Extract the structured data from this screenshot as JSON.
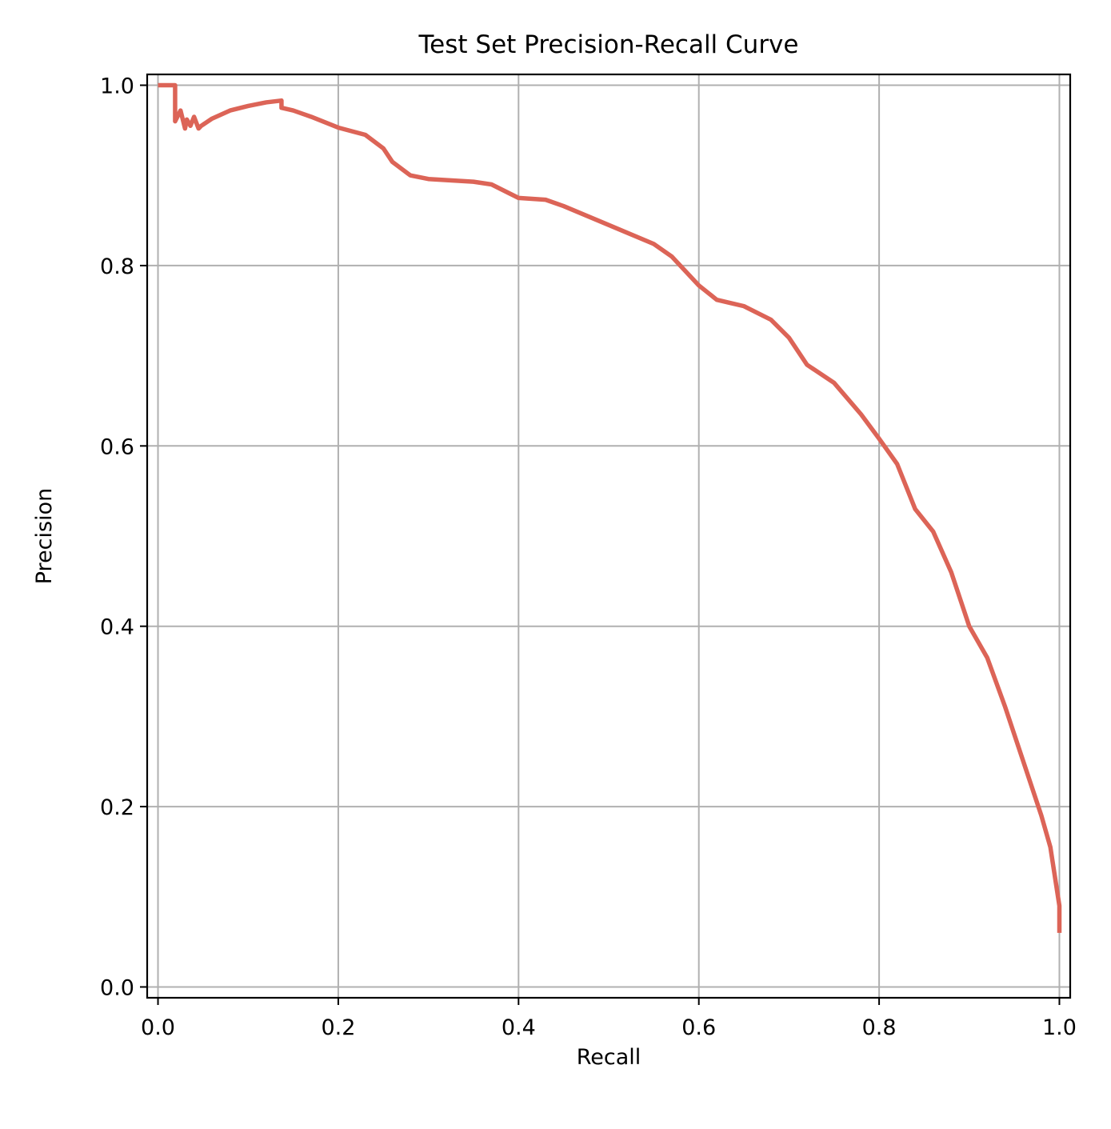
{
  "chart_data": {
    "type": "line",
    "title": "Test Set Precision-Recall Curve",
    "xlabel": "Recall",
    "ylabel": "Precision",
    "xlim": [
      -0.012,
      1.012
    ],
    "ylim": [
      -0.012,
      1.012
    ],
    "grid": true,
    "x_ticks": [
      0.0,
      0.2,
      0.4,
      0.6,
      0.8,
      1.0
    ],
    "y_ticks": [
      0.0,
      0.2,
      0.4,
      0.6,
      0.8,
      1.0
    ],
    "x_tick_labels": [
      "0.0",
      "0.2",
      "0.4",
      "0.6",
      "0.8",
      "1.0"
    ],
    "y_tick_labels": [
      "0.0",
      "0.2",
      "0.4",
      "0.6",
      "0.8",
      "1.0"
    ],
    "series": [
      {
        "color": "#dc6457",
        "x": [
          0.0,
          0.019,
          0.019,
          0.025,
          0.03,
          0.032,
          0.036,
          0.04,
          0.045,
          0.048,
          0.06,
          0.08,
          0.1,
          0.12,
          0.137,
          0.137,
          0.15,
          0.17,
          0.2,
          0.23,
          0.25,
          0.26,
          0.28,
          0.3,
          0.35,
          0.37,
          0.4,
          0.43,
          0.45,
          0.5,
          0.55,
          0.57,
          0.6,
          0.62,
          0.65,
          0.68,
          0.7,
          0.72,
          0.75,
          0.78,
          0.8,
          0.82,
          0.84,
          0.86,
          0.88,
          0.9,
          0.92,
          0.94,
          0.96,
          0.98,
          0.99,
          1.0,
          1.0
        ],
        "y": [
          1.0,
          1.0,
          0.96,
          0.972,
          0.952,
          0.962,
          0.955,
          0.965,
          0.952,
          0.955,
          0.963,
          0.972,
          0.977,
          0.981,
          0.983,
          0.975,
          0.972,
          0.965,
          0.953,
          0.945,
          0.93,
          0.915,
          0.9,
          0.896,
          0.893,
          0.89,
          0.875,
          0.873,
          0.866,
          0.845,
          0.824,
          0.81,
          0.778,
          0.762,
          0.755,
          0.74,
          0.72,
          0.69,
          0.67,
          0.635,
          0.608,
          0.58,
          0.53,
          0.505,
          0.46,
          0.4,
          0.365,
          0.31,
          0.25,
          0.19,
          0.155,
          0.09,
          0.06
        ]
      }
    ]
  }
}
